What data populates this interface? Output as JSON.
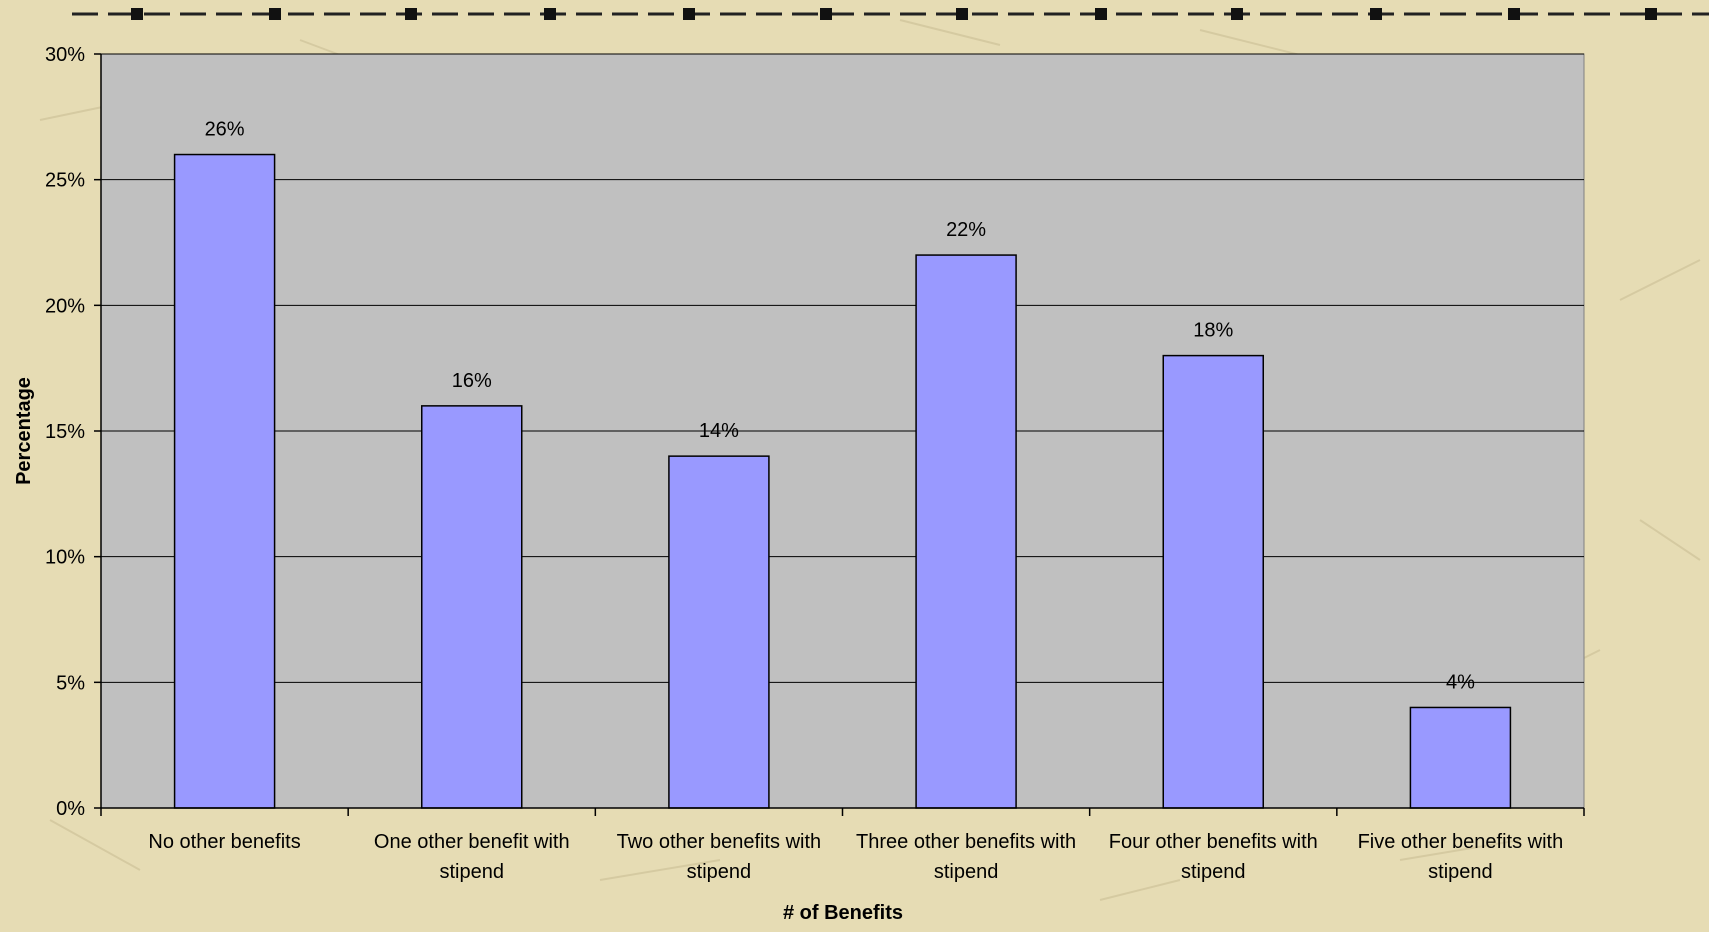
{
  "colors": {
    "page_background": "#e6dcb4",
    "plot_background": "#c0c0c0",
    "bar_fill": "#9999ff",
    "bar_stroke": "#000000",
    "gridline": "#000000",
    "text": "#000000"
  },
  "chart_data": {
    "type": "bar",
    "title": "",
    "xlabel": "# of Benefits",
    "ylabel": "Percentage",
    "categories": [
      [
        "No other benefits"
      ],
      [
        "One other benefit with",
        "stipend"
      ],
      [
        "Two other benefits with",
        "stipend"
      ],
      [
        "Three other benefits with",
        "stipend"
      ],
      [
        "Four other benefits with",
        "stipend"
      ],
      [
        "Five other benefits with",
        "stipend"
      ]
    ],
    "values": [
      26,
      16,
      14,
      22,
      18,
      4
    ],
    "data_labels": [
      "26%",
      "16%",
      "14%",
      "22%",
      "18%",
      "4%"
    ],
    "ylim": [
      0,
      30
    ],
    "yticks": [
      0,
      5,
      10,
      15,
      20,
      25,
      30
    ],
    "ytick_labels": [
      "0%",
      "5%",
      "10%",
      "15%",
      "20%",
      "25%",
      "30%"
    ],
    "grid": true,
    "legend": "none"
  }
}
